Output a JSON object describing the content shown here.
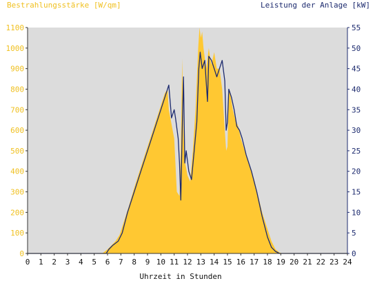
{
  "chart_data": {
    "type": "area",
    "title_left": "Bestrahlungsstärke [W/qm]",
    "title_right": "Leistung der Anlage [kW]",
    "xlabel": "Uhrzeit in Stunden",
    "x_ticks": [
      "0",
      "1",
      "2",
      "3",
      "4",
      "5",
      "6",
      "7",
      "8",
      "9",
      "10",
      "11",
      "12",
      "13",
      "14",
      "15",
      "16",
      "17",
      "18",
      "19",
      "20",
      "21",
      "22",
      "23",
      "24"
    ],
    "xlim": [
      0,
      24
    ],
    "y_left": {
      "ticks": [
        "0",
        "100",
        "200",
        "300",
        "400",
        "500",
        "600",
        "700",
        "800",
        "900",
        "1000",
        "1100"
      ],
      "lim": [
        0,
        1100
      ]
    },
    "y_right": {
      "ticks": [
        "0",
        "5",
        "10",
        "15",
        "20",
        "25",
        "30",
        "35",
        "40",
        "45",
        "50",
        "55"
      ],
      "lim": [
        0,
        55
      ]
    },
    "grid": false,
    "colors": {
      "irradiance": "#ffc832",
      "power": "#1c2a6e",
      "plot_bg": "#dcdcdc",
      "left_axis_text": "#f0c020",
      "right_axis_text": "#1c2a6e"
    },
    "series": [
      {
        "axis": "left",
        "style": "filled-area",
        "x": [
          0,
          5.6,
          6.0,
          6.3,
          6.6,
          6.9,
          7.2,
          7.6,
          8.0,
          8.5,
          9.0,
          9.5,
          10.0,
          10.3,
          10.5,
          10.6,
          10.8,
          11.0,
          11.2,
          11.4,
          11.5,
          11.6,
          11.7,
          11.8,
          12.0,
          12.2,
          12.4,
          12.6,
          12.8,
          12.9,
          13.0,
          13.1,
          13.2,
          13.4,
          13.6,
          13.7,
          13.8,
          14.0,
          14.2,
          14.4,
          14.6,
          14.8,
          14.9,
          15.0,
          15.1,
          15.2,
          15.4,
          15.6,
          15.8,
          16.0,
          16.3,
          16.6,
          17.0,
          17.3,
          17.6,
          18.0,
          18.3,
          18.6,
          18.9,
          19.1,
          24
        ],
        "y": [
          0,
          0,
          20,
          40,
          60,
          90,
          150,
          230,
          320,
          420,
          520,
          620,
          720,
          780,
          800,
          700,
          630,
          560,
          300,
          280,
          500,
          950,
          600,
          450,
          380,
          350,
          500,
          700,
          1000,
          1100,
          1050,
          1080,
          1000,
          900,
          1000,
          950,
          920,
          980,
          900,
          900,
          800,
          600,
          500,
          520,
          800,
          780,
          700,
          650,
          620,
          560,
          500,
          440,
          360,
          280,
          200,
          120,
          60,
          20,
          5,
          0,
          0
        ]
      },
      {
        "axis": "right",
        "style": "line",
        "x": [
          0,
          5.9,
          6.1,
          6.4,
          6.8,
          7.1,
          7.5,
          8.0,
          8.5,
          9.0,
          9.5,
          10.0,
          10.3,
          10.6,
          10.8,
          11.0,
          11.1,
          11.3,
          11.4,
          11.5,
          11.6,
          11.7,
          11.8,
          11.9,
          12.1,
          12.3,
          12.5,
          12.7,
          12.85,
          12.95,
          13.1,
          13.3,
          13.5,
          13.6,
          13.8,
          14.0,
          14.2,
          14.4,
          14.6,
          14.8,
          14.9,
          15.0,
          15.1,
          15.3,
          15.5,
          15.7,
          15.9,
          16.1,
          16.4,
          16.8,
          17.2,
          17.6,
          18.0,
          18.3,
          18.6,
          18.9,
          19.0,
          24
        ],
        "y": [
          0,
          0,
          1,
          2,
          3,
          5,
          10,
          15,
          20,
          25,
          30,
          35,
          38,
          41,
          33,
          35,
          33,
          28,
          22,
          13,
          30,
          43,
          22,
          25,
          20,
          18,
          25,
          32,
          45,
          49,
          45,
          47,
          37,
          48,
          47,
          45,
          43,
          45,
          47,
          42,
          30,
          32,
          40,
          38,
          35,
          31,
          30,
          28,
          24,
          20,
          15,
          9,
          4,
          1.5,
          0.5,
          0,
          0,
          0
        ]
      }
    ]
  }
}
